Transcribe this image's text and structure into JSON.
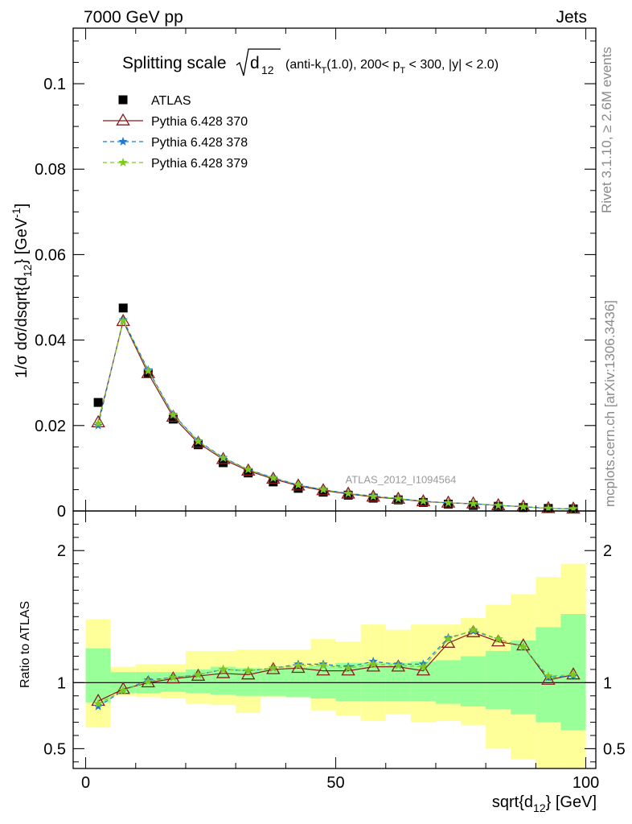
{
  "header": {
    "left": "7000 GeV pp",
    "right": "Jets"
  },
  "side_labels": {
    "rivet": "Rivet 3.1.10, ≥ 2.6M events",
    "mcplots": "mcplots.cern.ch [arXiv:1306.3436]"
  },
  "chart_data": [
    {
      "type": "scatter",
      "panel": "main",
      "title": {
        "main": "Splitting scale",
        "sqrt_symbol": "d",
        "sqrt_sub": "12",
        "details_prefix": "(anti-k",
        "details_kt_sub": "T",
        "details_mid": "(1.0), 200< p",
        "details_pt_sub": "T",
        "details_suffix": " < 300, |y| < 2.0)"
      },
      "ylabel": "1/σ dσ/dsqrt{d12} [GeV-1]",
      "ylabel_parts": {
        "a": "1/σ dσ/dsqrt{d",
        "sub": "12",
        "b": "} [GeV",
        "sup": "-1",
        "c": "]"
      },
      "ylim": [
        0,
        0.113
      ],
      "yticks": [
        0,
        0.02,
        0.04,
        0.06,
        0.08,
        0.1
      ],
      "ytick_labels": [
        "0",
        "0.02",
        "0.04",
        "0.06",
        "0.08",
        "0.1"
      ],
      "xlim": [
        -2.5,
        102
      ],
      "x": [
        2.5,
        7.5,
        12.5,
        17.5,
        22.5,
        27.5,
        32.5,
        37.5,
        42.5,
        47.5,
        52.5,
        57.5,
        62.5,
        67.5,
        72.5,
        77.5,
        82.5,
        87.5,
        92.5,
        97.5
      ],
      "watermark": "ATLAS_2012_I1094564",
      "legend_position": "top-left",
      "series": [
        {
          "name": "ATLAS",
          "marker": "square",
          "color": "#000000",
          "values": [
            0.0254,
            0.0475,
            0.0322,
            0.0215,
            0.0155,
            0.0113,
            0.0089,
            0.0068,
            0.0053,
            0.0044,
            0.0037,
            0.003,
            0.0026,
            0.002,
            0.0016,
            0.0013,
            0.0011,
            0.0008,
            0.0006,
            0.0005
          ]
        },
        {
          "name": "Pythia 6.428 370",
          "marker": "triangle",
          "color": "#8b1a1a",
          "dash": "solid",
          "values": [
            0.0207,
            0.0444,
            0.0322,
            0.022,
            0.0159,
            0.0121,
            0.0094,
            0.0075,
            0.0059,
            0.0048,
            0.004,
            0.0033,
            0.0028,
            0.0022,
            0.0019,
            0.0017,
            0.0013,
            0.001,
            0.0006,
            0.0005
          ]
        },
        {
          "name": "Pythia 6.428 378",
          "marker": "star",
          "color": "#1f78d4",
          "dash": "5,4",
          "values": [
            0.02,
            0.0447,
            0.033,
            0.0226,
            0.0164,
            0.0125,
            0.0097,
            0.0078,
            0.0061,
            0.005,
            0.0041,
            0.0035,
            0.0029,
            0.0023,
            0.0019,
            0.0017,
            0.0013,
            0.001,
            0.0006,
            0.0005
          ]
        },
        {
          "name": "Pythia 6.428 379",
          "marker": "star",
          "color": "#7dc91f",
          "dash": "5,4",
          "values": [
            0.0205,
            0.0445,
            0.0328,
            0.0225,
            0.0163,
            0.0124,
            0.0097,
            0.0077,
            0.0061,
            0.005,
            0.0041,
            0.0034,
            0.0029,
            0.0023,
            0.0019,
            0.0017,
            0.0013,
            0.001,
            0.0006,
            0.0005
          ]
        }
      ]
    },
    {
      "type": "scatter",
      "panel": "ratio",
      "ylabel": "Ratio to ATLAS",
      "xlabel": "sqrt{d12} [GeV]",
      "xlabel_parts": {
        "a": "sqrt{d",
        "sub": "12",
        "b": "} [GeV]"
      },
      "ylim": [
        0.35,
        2.3
      ],
      "yticks": [
        0.5,
        1,
        2
      ],
      "ytick_labels": [
        "0.5",
        "1",
        "2"
      ],
      "xticks": [
        0,
        50,
        100
      ],
      "xtick_labels": [
        "0",
        "50",
        "100"
      ],
      "xlim": [
        -2.5,
        102
      ],
      "x": [
        2.5,
        7.5,
        12.5,
        17.5,
        22.5,
        27.5,
        32.5,
        37.5,
        42.5,
        47.5,
        52.5,
        57.5,
        62.5,
        67.5,
        72.5,
        77.5,
        82.5,
        87.5,
        92.5,
        97.5
      ],
      "bin_edges": [
        0,
        5,
        10,
        15,
        20,
        25,
        30,
        35,
        40,
        45,
        50,
        55,
        60,
        65,
        70,
        75,
        80,
        85,
        90,
        95,
        100
      ],
      "band_colors": {
        "stat": "#99ff99",
        "total": "#ffff99"
      },
      "band_green": [
        [
          0.85,
          1.26
        ],
        [
          0.92,
          1.08
        ],
        [
          0.92,
          1.08
        ],
        [
          0.93,
          1.08
        ],
        [
          0.92,
          1.1
        ],
        [
          0.91,
          1.12
        ],
        [
          0.9,
          1.11
        ],
        [
          0.9,
          1.1
        ],
        [
          0.89,
          1.12
        ],
        [
          0.88,
          1.13
        ],
        [
          0.86,
          1.15
        ],
        [
          0.86,
          1.15
        ],
        [
          0.86,
          1.15
        ],
        [
          0.86,
          1.16
        ],
        [
          0.84,
          1.17
        ],
        [
          0.82,
          1.2
        ],
        [
          0.8,
          1.24
        ],
        [
          0.76,
          1.32
        ],
        [
          0.7,
          1.42
        ],
        [
          0.64,
          1.52
        ]
      ],
      "band_yellow": [
        [
          0.66,
          1.48
        ],
        [
          0.9,
          1.12
        ],
        [
          0.89,
          1.14
        ],
        [
          0.88,
          1.14
        ],
        [
          0.84,
          1.24
        ],
        [
          0.83,
          1.24
        ],
        [
          0.77,
          1.25
        ],
        [
          0.89,
          1.25
        ],
        [
          0.89,
          1.25
        ],
        [
          0.79,
          1.33
        ],
        [
          0.75,
          1.31
        ],
        [
          0.71,
          1.44
        ],
        [
          0.76,
          1.4
        ],
        [
          0.7,
          1.44
        ],
        [
          0.71,
          1.44
        ],
        [
          0.68,
          1.49
        ],
        [
          0.5,
          1.59
        ],
        [
          0.42,
          1.67
        ],
        [
          0.35,
          1.8
        ],
        [
          0.35,
          1.9
        ]
      ],
      "series": [
        {
          "name": "Pythia 6.428 370",
          "marker": "triangle",
          "color": "#8b1a1a",
          "dash": "solid",
          "values": [
            0.86,
            0.95,
            1.0,
            1.03,
            1.05,
            1.07,
            1.06,
            1.1,
            1.11,
            1.09,
            1.09,
            1.12,
            1.12,
            1.09,
            1.3,
            1.38,
            1.31,
            1.28,
            1.02,
            1.06
          ]
        },
        {
          "name": "Pythia 6.428 378",
          "marker": "star",
          "color": "#1f78d4",
          "dash": "5,4",
          "values": [
            0.82,
            0.94,
            1.02,
            1.04,
            1.06,
            1.1,
            1.09,
            1.11,
            1.14,
            1.14,
            1.12,
            1.16,
            1.14,
            1.14,
            1.34,
            1.39,
            1.33,
            1.27,
            1.04,
            1.05
          ]
        },
        {
          "name": "Pythia 6.428 379",
          "marker": "star",
          "color": "#7dc91f",
          "dash": "5,4",
          "values": [
            0.84,
            0.94,
            1.01,
            1.04,
            1.06,
            1.1,
            1.09,
            1.11,
            1.13,
            1.13,
            1.11,
            1.14,
            1.13,
            1.12,
            1.33,
            1.4,
            1.33,
            1.27,
            1.05,
            1.06
          ]
        }
      ]
    }
  ]
}
